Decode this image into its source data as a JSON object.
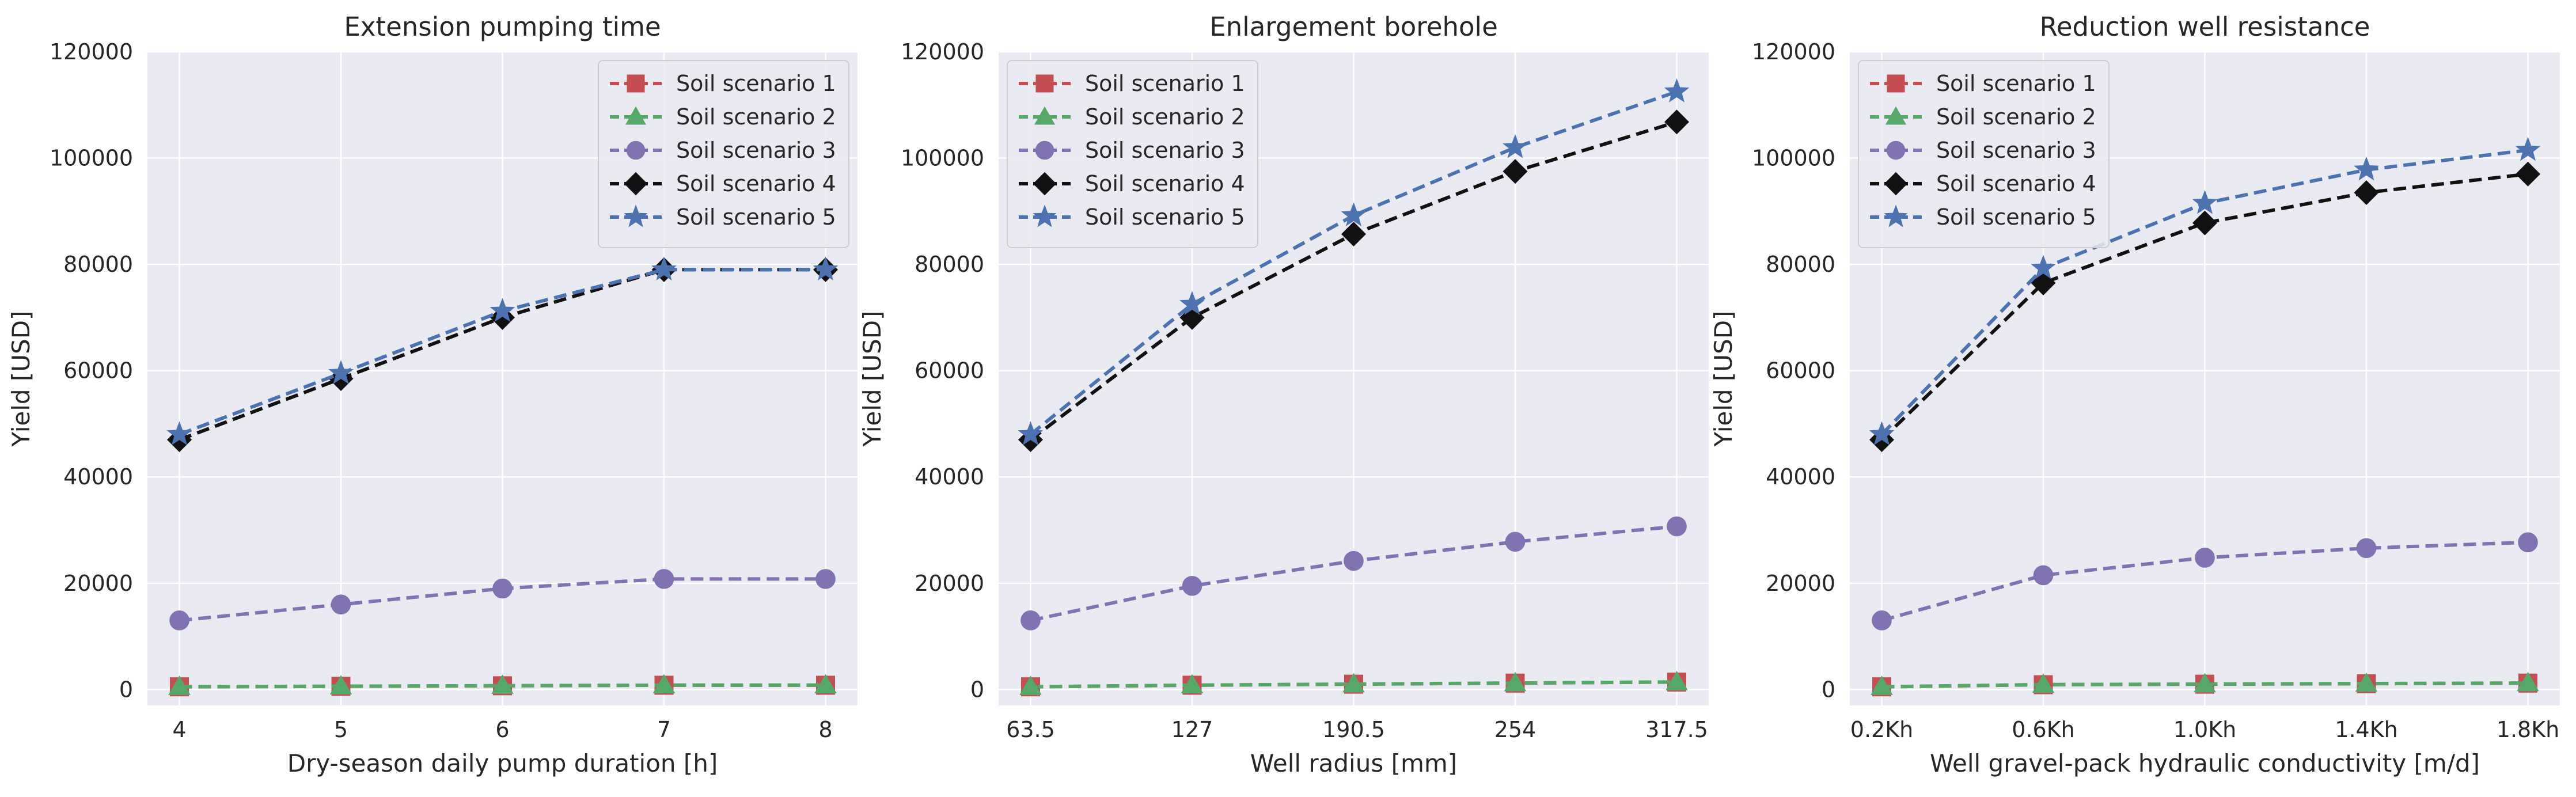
{
  "chart_data": [
    {
      "type": "line",
      "title": "Extension pumping time",
      "xlabel": "Dry-season daily pump duration [h]",
      "ylabel": "Yield [USD]",
      "categories": [
        "4",
        "5",
        "6",
        "7",
        "8"
      ],
      "ylim": [
        -3000,
        120000
      ],
      "yticks": [
        "0",
        "20000",
        "40000",
        "60000",
        "80000",
        "100000",
        "120000"
      ],
      "grid": true,
      "legend_position": "top-right",
      "series": [
        {
          "name": "Soil scenario 1",
          "color": "#c44e52",
          "marker": "square",
          "values": [
            500,
            600,
            700,
            800,
            800
          ]
        },
        {
          "name": "Soil scenario 2",
          "color": "#55a868",
          "marker": "triangle",
          "values": [
            520,
            620,
            720,
            820,
            820
          ]
        },
        {
          "name": "Soil scenario 3",
          "color": "#8172b2",
          "marker": "circle",
          "values": [
            13000,
            16000,
            19000,
            20800,
            20800
          ]
        },
        {
          "name": "Soil scenario 4",
          "color": "#111111",
          "marker": "diamond",
          "values": [
            47000,
            58500,
            70000,
            79000,
            79000
          ]
        },
        {
          "name": "Soil scenario 5",
          "color": "#4c72b0",
          "marker": "star",
          "values": [
            48000,
            59500,
            71200,
            79000,
            79000
          ]
        }
      ]
    },
    {
      "type": "line",
      "title": "Enlargement borehole",
      "xlabel": "Well radius [mm]",
      "ylabel": "Yield [USD]",
      "categories": [
        "63.5",
        "127",
        "190.5",
        "254",
        "317.5"
      ],
      "ylim": [
        -3000,
        120000
      ],
      "yticks": [
        "0",
        "20000",
        "40000",
        "60000",
        "80000",
        "100000",
        "120000"
      ],
      "grid": true,
      "legend_position": "top-left",
      "series": [
        {
          "name": "Soil scenario 1",
          "color": "#c44e52",
          "marker": "square",
          "values": [
            500,
            800,
            1000,
            1200,
            1400
          ]
        },
        {
          "name": "Soil scenario 2",
          "color": "#55a868",
          "marker": "triangle",
          "values": [
            520,
            820,
            1020,
            1220,
            1420
          ]
        },
        {
          "name": "Soil scenario 3",
          "color": "#8172b2",
          "marker": "circle",
          "values": [
            13000,
            19500,
            24200,
            27800,
            30700
          ]
        },
        {
          "name": "Soil scenario 4",
          "color": "#111111",
          "marker": "diamond",
          "values": [
            47000,
            70000,
            85700,
            97500,
            106800
          ]
        },
        {
          "name": "Soil scenario 5",
          "color": "#4c72b0",
          "marker": "star",
          "values": [
            48000,
            72500,
            89200,
            102000,
            112500
          ]
        }
      ]
    },
    {
      "type": "line",
      "title": "Reduction well resistance",
      "xlabel": "Well gravel-pack hydraulic conductivity [m/d]",
      "ylabel": "Yield [USD]",
      "categories": [
        "0.2Kh",
        "0.6Kh",
        "1.0Kh",
        "1.4Kh",
        "1.8Kh"
      ],
      "ylim": [
        -3000,
        120000
      ],
      "yticks": [
        "0",
        "20000",
        "40000",
        "60000",
        "80000",
        "100000",
        "120000"
      ],
      "grid": true,
      "legend_position": "top-left",
      "series": [
        {
          "name": "Soil scenario 1",
          "color": "#c44e52",
          "marker": "square",
          "values": [
            500,
            900,
            1000,
            1100,
            1200
          ]
        },
        {
          "name": "Soil scenario 2",
          "color": "#55a868",
          "marker": "triangle",
          "values": [
            520,
            920,
            1020,
            1120,
            1220
          ]
        },
        {
          "name": "Soil scenario 3",
          "color": "#8172b2",
          "marker": "circle",
          "values": [
            13000,
            21500,
            24800,
            26600,
            27700
          ]
        },
        {
          "name": "Soil scenario 4",
          "color": "#111111",
          "marker": "diamond",
          "values": [
            47000,
            76500,
            87800,
            93500,
            97000
          ]
        },
        {
          "name": "Soil scenario 5",
          "color": "#4c72b0",
          "marker": "star",
          "values": [
            48000,
            79300,
            91500,
            97800,
            101500
          ]
        }
      ]
    }
  ]
}
